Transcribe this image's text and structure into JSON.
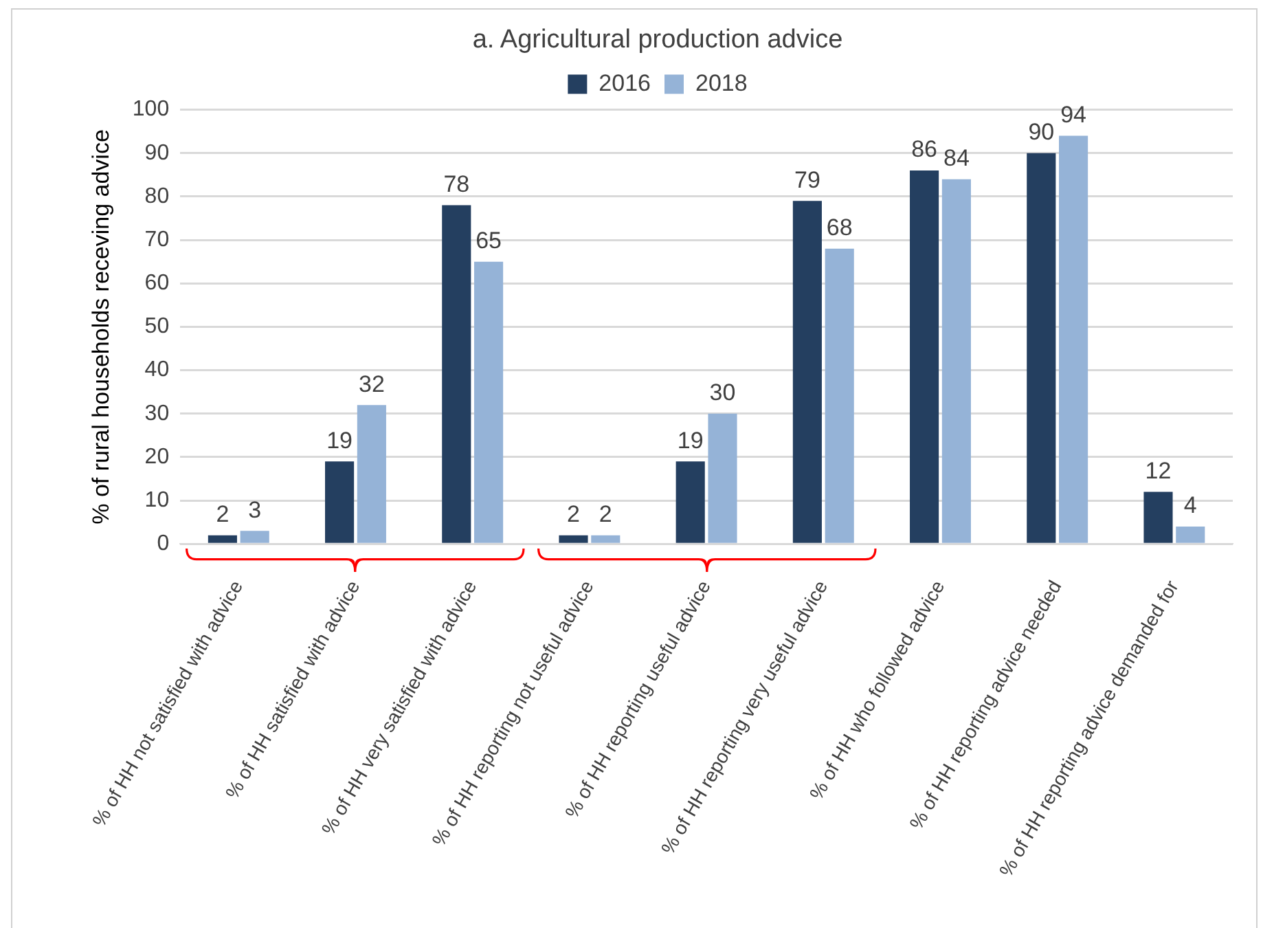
{
  "chart_data": {
    "type": "bar",
    "title": "a. Agricultural production advice",
    "ylabel": "% of rural households receving advice",
    "categories": [
      "% of HH not satisfied with advice",
      "% of HH satisfied with advice",
      "% of HH very satisfied with advice",
      "% of HH reporting not useful advice",
      "% of HH reporting useful advice",
      "% of HH reporting very useful advice",
      "% of HH who followed advice",
      "% of HH reporting advice needed",
      "% of HH reporting advice demanded for"
    ],
    "series": [
      {
        "name": "2016",
        "color": "#243f60",
        "values": [
          2,
          19,
          78,
          2,
          19,
          79,
          86,
          90,
          12
        ]
      },
      {
        "name": "2018",
        "color": "#95b3d7",
        "values": [
          3,
          32,
          65,
          2,
          30,
          68,
          84,
          94,
          4
        ]
      }
    ],
    "ylim": [
      0,
      100
    ],
    "yticks": [
      0,
      10,
      20,
      30,
      40,
      50,
      60,
      70,
      80,
      90,
      100
    ],
    "grid": "y",
    "legend": "top",
    "data_labels": true
  }
}
